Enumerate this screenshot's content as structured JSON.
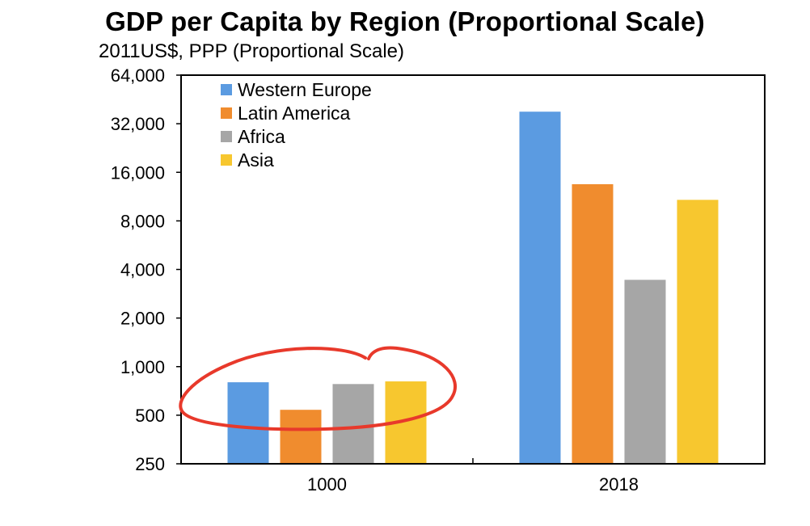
{
  "chart_data": {
    "type": "bar",
    "title": "GDP per Capita by Region (Proportional Scale)",
    "subtitle": "2011US$, PPP (Proportional Scale)",
    "xlabel": "",
    "ylabel": "",
    "y_scale": "log2",
    "ylim": [
      250,
      64000
    ],
    "y_ticks": [
      250,
      500,
      1000,
      2000,
      4000,
      8000,
      16000,
      32000,
      64000
    ],
    "y_tick_labels": [
      "250",
      "500",
      "1,000",
      "2,000",
      "4,000",
      "8,000",
      "16,000",
      "32,000",
      "64,000"
    ],
    "categories": [
      "1000",
      "2018"
    ],
    "series": [
      {
        "name": "Western Europe",
        "color": "#5B9BE1",
        "values": [
          800,
          38000
        ]
      },
      {
        "name": "Latin America",
        "color": "#F08C2E",
        "values": [
          540,
          13500
        ]
      },
      {
        "name": "Africa",
        "color": "#A6A6A6",
        "values": [
          780,
          3450
        ]
      },
      {
        "name": "Asia",
        "color": "#F7C72F",
        "values": [
          810,
          10800
        ]
      }
    ],
    "legend_position": "top-left",
    "grid": false,
    "annotation": "red hand-drawn circle around the year 1000 bars"
  }
}
